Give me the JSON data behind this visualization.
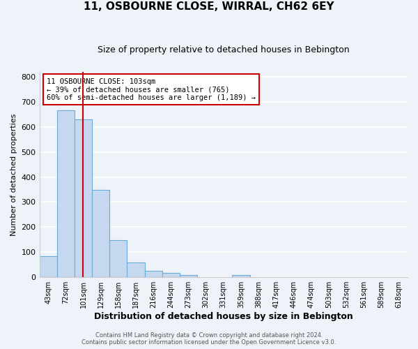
{
  "title": "11, OSBOURNE CLOSE, WIRRAL, CH62 6EY",
  "subtitle": "Size of property relative to detached houses in Bebington",
  "xlabel": "Distribution of detached houses by size in Bebington",
  "ylabel": "Number of detached properties",
  "bar_labels": [
    "43sqm",
    "72sqm",
    "101sqm",
    "129sqm",
    "158sqm",
    "187sqm",
    "216sqm",
    "244sqm",
    "273sqm",
    "302sqm",
    "331sqm",
    "359sqm",
    "388sqm",
    "417sqm",
    "446sqm",
    "474sqm",
    "503sqm",
    "532sqm",
    "561sqm",
    "589sqm",
    "618sqm"
  ],
  "bar_heights": [
    83,
    665,
    630,
    348,
    148,
    60,
    25,
    18,
    10,
    0,
    0,
    8,
    0,
    0,
    0,
    0,
    0,
    0,
    0,
    0,
    0
  ],
  "bar_color": "#c5d8f0",
  "bar_edge_color": "#6aaad4",
  "bar_width": 1.0,
  "vline_x": 2,
  "vline_color": "#cc0000",
  "annotation_text": "11 OSBOURNE CLOSE: 103sqm\n← 39% of detached houses are smaller (765)\n60% of semi-detached houses are larger (1,189) →",
  "annotation_box_color": "#ffffff",
  "annotation_box_edge": "#cc0000",
  "ylim": [
    0,
    820
  ],
  "yticks": [
    0,
    100,
    200,
    300,
    400,
    500,
    600,
    700,
    800
  ],
  "footer1": "Contains HM Land Registry data © Crown copyright and database right 2024.",
  "footer2": "Contains public sector information licensed under the Open Government Licence v3.0.",
  "bg_color": "#eef2f9",
  "grid_color": "#ffffff",
  "figsize": [
    6.0,
    5.0
  ],
  "dpi": 100
}
